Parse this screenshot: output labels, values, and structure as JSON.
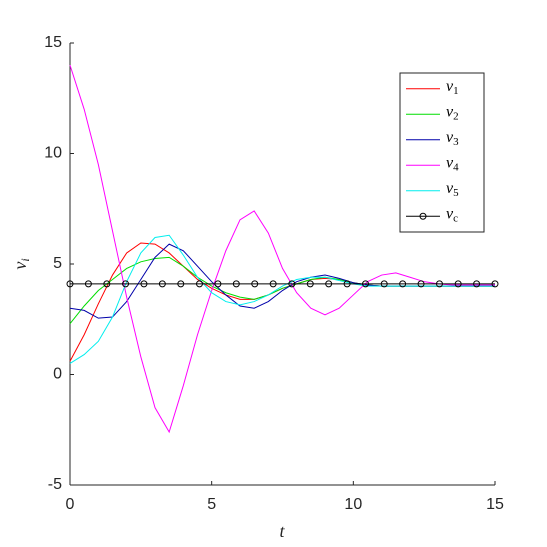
{
  "chart_data": {
    "type": "line",
    "xlabel": "t",
    "ylabel": "vi",
    "x": [
      0,
      0.5,
      1,
      1.5,
      2,
      2.5,
      3,
      3.5,
      4,
      4.5,
      5,
      5.5,
      6,
      6.5,
      7,
      7.5,
      8,
      8.5,
      9,
      9.5,
      10,
      10.5,
      11,
      11.5,
      12,
      12.5,
      13,
      13.5,
      14,
      14.5,
      15
    ],
    "series": [
      {
        "name": "v1",
        "color": "#ff0000",
        "values": [
          0.6,
          1.8,
          3.2,
          4.5,
          5.5,
          5.95,
          5.9,
          5.5,
          4.9,
          4.3,
          3.9,
          3.6,
          3.4,
          3.4,
          3.6,
          3.9,
          4.1,
          4.3,
          4.35,
          4.3,
          4.15,
          4.05,
          4.0,
          4.0,
          4.0,
          4.0,
          4.0,
          4.0,
          4.0,
          4.0,
          4.0
        ]
      },
      {
        "name": "v2",
        "color": "#00dd00",
        "values": [
          2.3,
          3.1,
          3.8,
          4.3,
          4.8,
          5.1,
          5.25,
          5.3,
          4.9,
          4.4,
          4.0,
          3.7,
          3.5,
          3.4,
          3.6,
          3.9,
          4.1,
          4.3,
          4.4,
          4.3,
          4.15,
          4.05,
          4.0,
          4.0,
          4.0,
          4.0,
          4.0,
          4.0,
          4.0,
          4.0,
          4.0
        ]
      },
      {
        "name": "v3",
        "color": "#0000aa",
        "values": [
          3.0,
          2.9,
          2.55,
          2.6,
          3.3,
          4.3,
          5.3,
          5.9,
          5.6,
          4.9,
          4.2,
          3.6,
          3.1,
          3.0,
          3.3,
          3.8,
          4.2,
          4.4,
          4.5,
          4.35,
          4.15,
          4.05,
          4.0,
          4.0,
          4.0,
          4.0,
          4.0,
          4.0,
          4.0,
          4.0,
          4.0
        ]
      },
      {
        "name": "v4",
        "color": "#ff00ff",
        "values": [
          14,
          12,
          9.5,
          6.5,
          3.5,
          0.8,
          -1.5,
          -2.6,
          -0.5,
          1.8,
          3.8,
          5.6,
          7.0,
          7.4,
          6.4,
          4.8,
          3.7,
          3.0,
          2.7,
          3.0,
          3.6,
          4.2,
          4.5,
          4.6,
          4.4,
          4.2,
          4.1,
          4.05,
          4.05,
          4.05,
          4.05
        ]
      },
      {
        "name": "v5",
        "color": "#00eeee",
        "values": [
          0.5,
          0.9,
          1.5,
          2.6,
          4.2,
          5.5,
          6.2,
          6.3,
          5.4,
          4.4,
          3.7,
          3.3,
          3.15,
          3.3,
          3.6,
          4.0,
          4.3,
          4.4,
          4.4,
          4.25,
          4.1,
          4.0,
          4.0,
          4.0,
          4.0,
          4.0,
          4.0,
          4.0,
          4.0,
          4.0,
          4.0
        ]
      },
      {
        "name": "vc",
        "color": "#000000",
        "marker": "o",
        "x": [
          0,
          0.65,
          1.3,
          1.96,
          2.61,
          3.26,
          3.91,
          4.57,
          5.22,
          5.87,
          6.52,
          7.17,
          7.83,
          8.48,
          9.13,
          9.78,
          10.43,
          11.09,
          11.74,
          12.39,
          13.04,
          13.7,
          14.35,
          15
        ],
        "values": [
          4.1,
          4.1,
          4.1,
          4.1,
          4.1,
          4.1,
          4.1,
          4.1,
          4.1,
          4.1,
          4.1,
          4.1,
          4.1,
          4.1,
          4.1,
          4.1,
          4.1,
          4.1,
          4.1,
          4.1,
          4.1,
          4.1,
          4.1,
          4.1
        ]
      }
    ],
    "xlim": [
      0,
      15
    ],
    "xticks": [
      0,
      5,
      10,
      15
    ],
    "ylim": [
      -5,
      15
    ],
    "yticks": [
      -5,
      0,
      5,
      10,
      15
    ],
    "legend": "top-right"
  }
}
